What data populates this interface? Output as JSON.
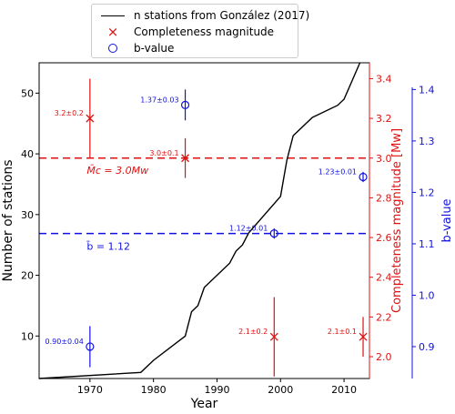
{
  "chart_data": {
    "type": "line",
    "legend": {
      "placement": "top-center-above",
      "entries": [
        {
          "label": "n stations from González (2017)",
          "marker": "line",
          "color": "#000000"
        },
        {
          "label": "Completeness magnitude",
          "marker": "x",
          "color": "#e01010"
        },
        {
          "label": "b-value",
          "marker": "circle",
          "color": "#1010e0"
        }
      ]
    },
    "xlabel": "Year",
    "xlim": [
      1962,
      2014
    ],
    "xticks": [
      "1970",
      "1980",
      "1990",
      "2000",
      "2010"
    ],
    "axes": {
      "left": {
        "label": "Number of stations",
        "color": "#000000",
        "lim": [
          3,
          55
        ],
        "ticks": [
          "10",
          "20",
          "30",
          "40",
          "50"
        ]
      },
      "right1": {
        "label": "Completeness magnitude [Mw]",
        "color": "#e01010",
        "lim": [
          1.89,
          3.48
        ],
        "ticks": [
          "2.0",
          "2.2",
          "2.4",
          "2.6",
          "2.8",
          "3.0",
          "3.2",
          "3.4"
        ]
      },
      "right2": {
        "label": "b-value",
        "color": "#1010e0",
        "lim": [
          0.838,
          1.452
        ],
        "ticks": [
          "0.9",
          "1.0",
          "1.1",
          "1.2",
          "1.3",
          "1.4"
        ]
      }
    },
    "series": [
      {
        "name": "n stations from González (2017)",
        "axis": "left",
        "color": "#000000",
        "x": [
          1962,
          1978,
          1980,
          1985,
          1986,
          1987,
          1988,
          1992,
          1993,
          1994,
          1995,
          2000,
          2001,
          2002,
          2005,
          2009,
          2010,
          2012.5
        ],
        "y": [
          3,
          4,
          6,
          10,
          14,
          15,
          18,
          22,
          24,
          25,
          27,
          33,
          39,
          43,
          46,
          48,
          49,
          55
        ]
      },
      {
        "name": "Completeness magnitude",
        "axis": "right1",
        "color": "#e01010",
        "marker": "x",
        "points": [
          {
            "x": 1970,
            "y": 3.2,
            "err": 0.2,
            "label": "3.2±0.2"
          },
          {
            "x": 1985,
            "y": 3.0,
            "err": 0.1,
            "label": "3.0±0.1"
          },
          {
            "x": 1999,
            "y": 2.1,
            "err": 0.2,
            "label": "2.1±0.2"
          },
          {
            "x": 2013,
            "y": 2.1,
            "err": 0.1,
            "label": "2.1±0.1"
          }
        ]
      },
      {
        "name": "b-value",
        "axis": "right2",
        "color": "#1010e0",
        "marker": "circle",
        "points": [
          {
            "x": 1970,
            "y": 0.9,
            "err": 0.04,
            "label": "0.90±0.04"
          },
          {
            "x": 1985,
            "y": 1.37,
            "err": 0.03,
            "label": "1.37±0.03"
          },
          {
            "x": 1999,
            "y": 1.12,
            "err": 0.01,
            "label": "1.12±0.01"
          },
          {
            "x": 2013,
            "y": 1.23,
            "err": 0.01,
            "label": "1.23±0.01"
          }
        ]
      }
    ],
    "reference_lines": [
      {
        "axis": "right1",
        "value": 3.0,
        "color": "#e01010",
        "label": "M̄c = 3.0Mw"
      },
      {
        "axis": "right2",
        "value": 1.12,
        "color": "#1010e0",
        "label": "b̄ = 1.12"
      }
    ],
    "grid": false
  }
}
